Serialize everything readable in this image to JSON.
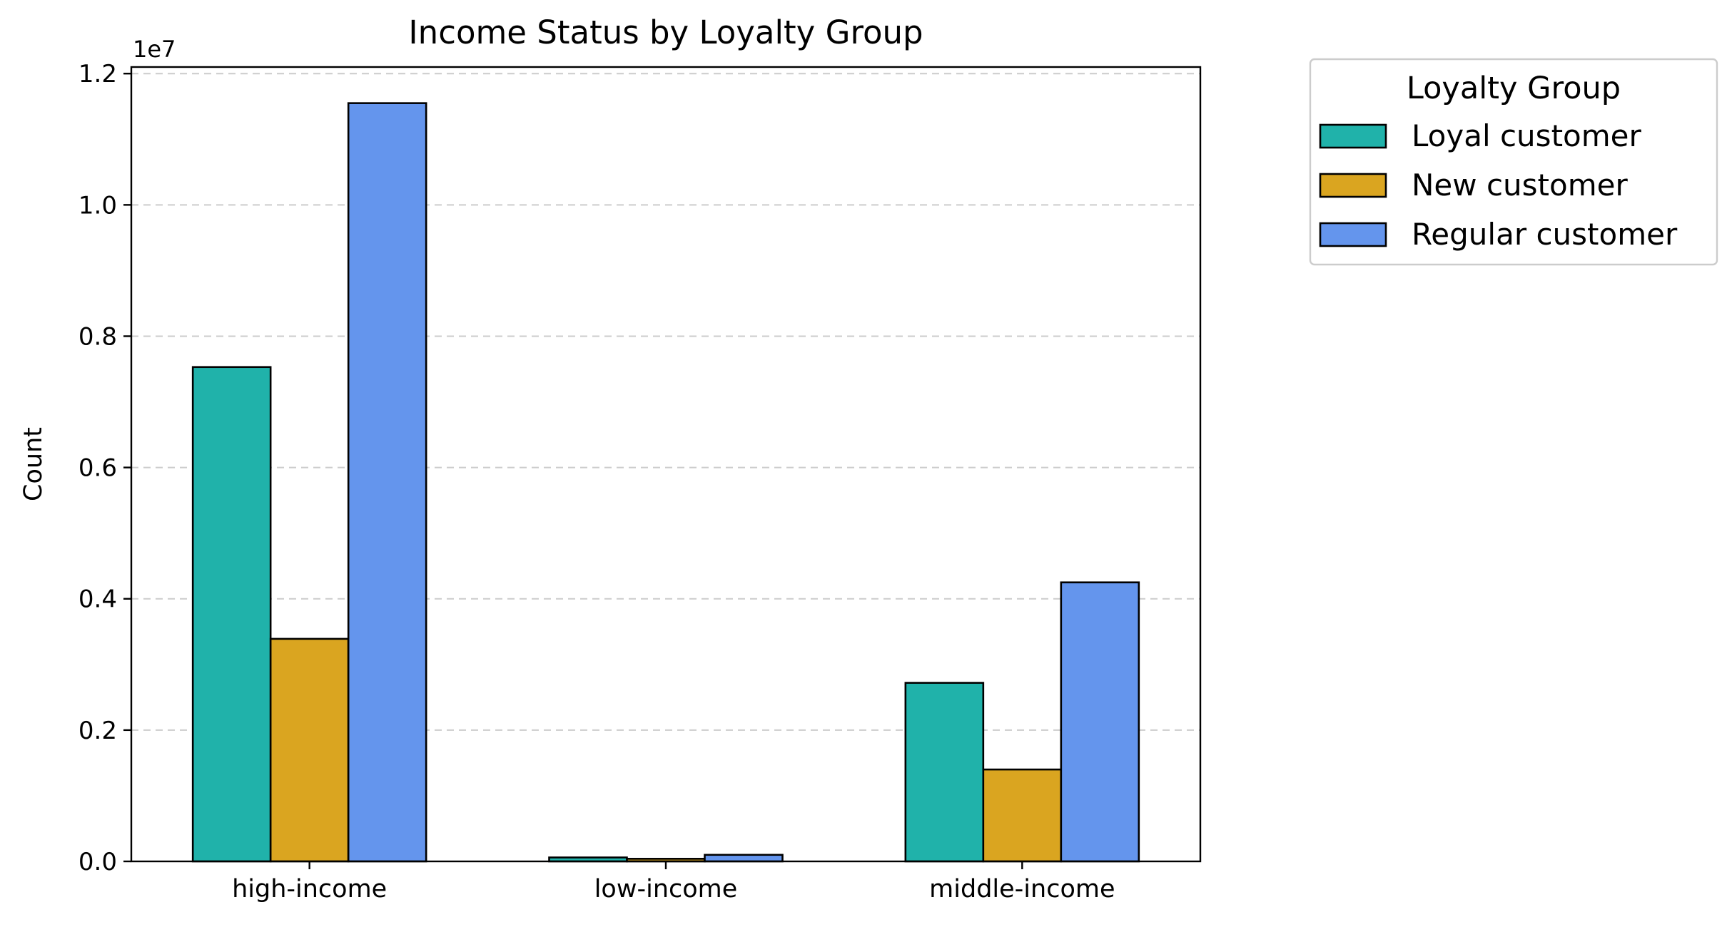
{
  "chart_data": {
    "type": "bar",
    "title": "Income Status by Loyalty Group",
    "xlabel": "",
    "ylabel": "Count",
    "y_offset_text": "1e7",
    "categories": [
      "high-income",
      "low-income",
      "middle-income"
    ],
    "series": [
      {
        "name": "Loyal customer",
        "color": "#20B2AA",
        "values": [
          7530000,
          60000,
          2720000
        ]
      },
      {
        "name": "New customer",
        "color": "#DAA520",
        "values": [
          3390000,
          40000,
          1400000
        ]
      },
      {
        "name": "Regular customer",
        "color": "#6495ED",
        "values": [
          11550000,
          100000,
          4250000
        ]
      }
    ],
    "ylim": [
      0,
      12100000
    ],
    "y_ticks": [
      0,
      2000000,
      4000000,
      6000000,
      8000000,
      10000000,
      12000000
    ],
    "y_tick_labels": [
      "0.0",
      "0.2",
      "0.4",
      "0.6",
      "0.8",
      "1.0",
      "1.2"
    ],
    "grid": "y-dashed",
    "legend": {
      "title": "Loyalty Group",
      "placement": "outside-upper-right"
    }
  }
}
